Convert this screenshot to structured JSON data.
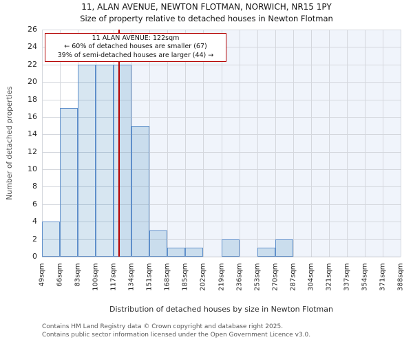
{
  "header": {
    "title": "11, ALAN AVENUE, NEWTON FLOTMAN, NORWICH, NR15 1PY",
    "subtitle": "Size of property relative to detached houses in Newton Flotman"
  },
  "annotation": {
    "line1": "11 ALAN AVENUE: 122sqm",
    "line2": "← 60% of detached houses are smaller (67)",
    "line3": "39% of semi-detached houses are larger (44) →"
  },
  "footer": {
    "line1": "Contains HM Land Registry data © Crown copyright and database right 2025.",
    "line2": "Contains public sector information licensed under the Open Government Licence v3.0."
  },
  "chart_data": {
    "type": "bar",
    "title": "11, ALAN AVENUE, NEWTON FLOTMAN, NORWICH, NR15 1PY",
    "subtitle": "Size of property relative to detached houses in Newton Flotman",
    "xlabel": "Distribution of detached houses by size in Newton Flotman",
    "ylabel": "Number of detached properties",
    "categories": [
      "49sqm",
      "66sqm",
      "83sqm",
      "100sqm",
      "117sqm",
      "134sqm",
      "151sqm",
      "168sqm",
      "185sqm",
      "202sqm",
      "219sqm",
      "236sqm",
      "253sqm",
      "270sqm",
      "287sqm",
      "304sqm",
      "321sqm",
      "337sqm",
      "354sqm",
      "371sqm",
      "388sqm"
    ],
    "bin_edges_sqm": [
      49,
      66,
      83,
      100,
      117,
      134,
      151,
      168,
      185,
      202,
      219,
      236,
      253,
      270,
      287,
      304,
      321,
      337,
      354,
      371,
      388
    ],
    "values": [
      4,
      17,
      22,
      22,
      22,
      15,
      3,
      1,
      1,
      0,
      2,
      0,
      1,
      2,
      0,
      0,
      0,
      0,
      0,
      0
    ],
    "ylim": [
      0,
      26
    ],
    "ytick_step": 2,
    "x_range_sqm": [
      49,
      388
    ],
    "marker": {
      "value_sqm": 122,
      "label": "11 ALAN AVENUE: 122sqm"
    },
    "shade_from_marker_to_right": true,
    "grid": true,
    "legend": "none",
    "colors": {
      "bar_fill": "rgba(31,119,180,0.18)",
      "bar_edge": "#5f8fca",
      "marker_line": "#b40000",
      "annotation_border": "#b40000",
      "shade": "rgba(110,150,215,0.10)",
      "gridline": "#d4d7dd"
    }
  }
}
